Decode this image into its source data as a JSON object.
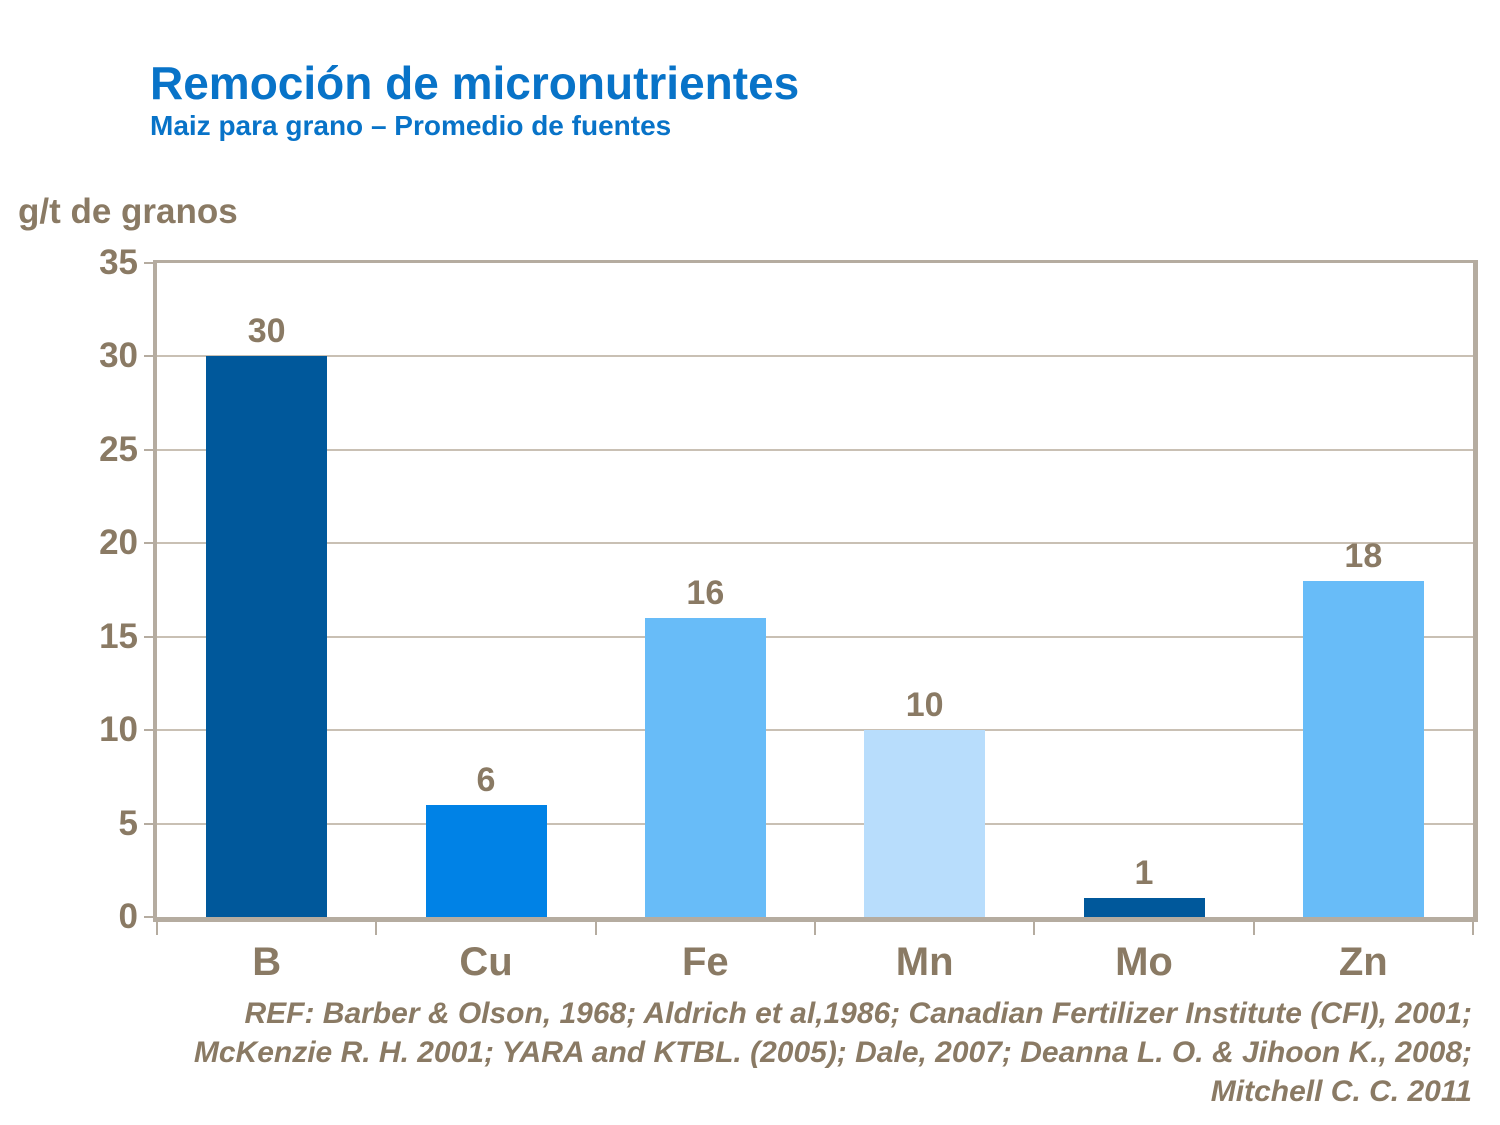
{
  "header": {
    "title": "Remoción de micronutrientes",
    "subtitle": "Maiz para grano – Promedio de fuentes"
  },
  "chart_data": {
    "type": "bar",
    "title": "Remoción de micronutrientes",
    "subtitle": "Maiz para grano – Promedio de fuentes",
    "ylabel": "g/t de granos",
    "xlabel": "",
    "categories": [
      "B",
      "Cu",
      "Fe",
      "Mn",
      "Mo",
      "Zn"
    ],
    "values": [
      30,
      6,
      16,
      10,
      1,
      18
    ],
    "bar_colors": [
      "#00589B",
      "#0082E6",
      "#68BCF8",
      "#B8DDFC",
      "#00589B",
      "#68BCF8"
    ],
    "ylim": [
      0,
      35
    ],
    "yticks": [
      0,
      5,
      10,
      15,
      20,
      25,
      30,
      35
    ],
    "grid": true,
    "legend": "none"
  },
  "footer": {
    "reference_lines": [
      "REF: Barber & Olson, 1968; Aldrich et al,1986; Canadian Fertilizer Institute (CFI), 2001;",
      "McKenzie R. H. 2001; YARA and KTBL. (2005); Dale, 2007; Deanna L. O. & Jihoon K., 2008;",
      "Mitchell C. C. 2011"
    ]
  },
  "colors": {
    "title_blue": "#0873C8",
    "label_brown": "#8A7A64",
    "frame": "#B5ACA0",
    "gridline": "#C9C0B4"
  }
}
